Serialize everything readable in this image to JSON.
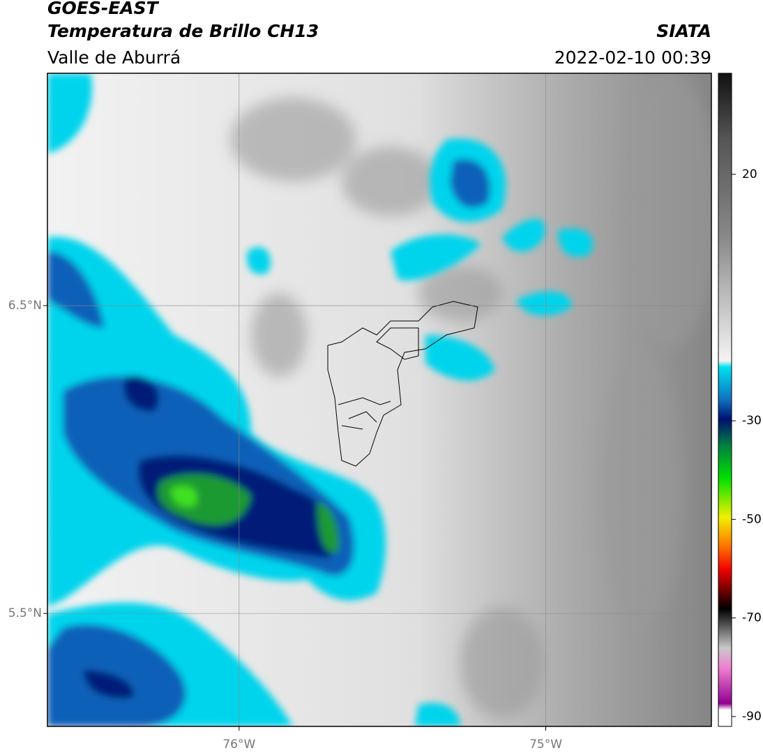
{
  "header": {
    "title": "GOES-EAST",
    "subtitle": "Temperatura de Brillo CH13",
    "region": "Valle de Aburrá",
    "source": "SIATA",
    "datetime": "2022-02-10 00:39"
  },
  "map": {
    "xlim": [
      -76.625,
      -74.46
    ],
    "ylim": [
      5.133,
      7.255
    ],
    "xticks": [
      {
        "value": -76,
        "label": "76°W"
      },
      {
        "value": -75,
        "label": "75°W"
      }
    ],
    "yticks": [
      {
        "value": 6.5,
        "label": "6.5°N"
      },
      {
        "value": 5.5,
        "label": "5.5°N"
      }
    ]
  },
  "colorbar": {
    "lim": [
      -92,
      40.5
    ],
    "ticks": [
      20,
      -30,
      -50,
      -70,
      -90
    ]
  }
}
